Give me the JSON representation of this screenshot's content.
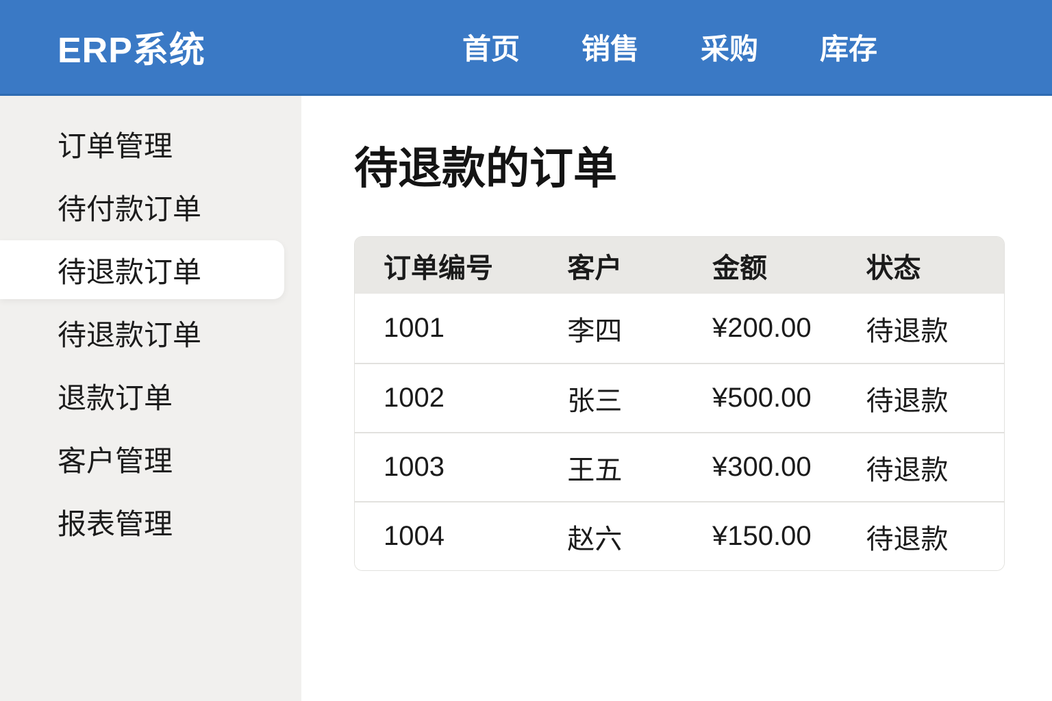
{
  "header": {
    "brand": "ERP系统",
    "nav": [
      {
        "label": "首页"
      },
      {
        "label": "销售"
      },
      {
        "label": "采购"
      },
      {
        "label": "库存"
      }
    ]
  },
  "sidebar": {
    "items": [
      {
        "label": "订单管理",
        "active": false
      },
      {
        "label": "待付款订单",
        "active": false
      },
      {
        "label": "待退款订单",
        "active": true
      },
      {
        "label": "待退款订单",
        "active": false
      },
      {
        "label": "退款订单",
        "active": false
      },
      {
        "label": "客户管理",
        "active": false
      },
      {
        "label": "报表管理",
        "active": false
      }
    ]
  },
  "main": {
    "title": "待退款的订单",
    "table": {
      "columns": [
        "订单编号",
        "客户",
        "金额",
        "状态"
      ],
      "rows": [
        [
          "1001",
          "李四",
          "¥200.00",
          "待退款"
        ],
        [
          "1002",
          "张三",
          "¥500.00",
          "待退款"
        ],
        [
          "1003",
          "王五",
          "¥300.00",
          "待退款"
        ],
        [
          "1004",
          "赵六",
          "¥150.00",
          "待退款"
        ]
      ]
    }
  },
  "colors": {
    "header_bg": "#3a79c5",
    "header_border": "#2e6bb1",
    "sidebar_bg": "#f1f0ee",
    "table_header_bg": "#e9e8e5",
    "row_border": "#e2e1de",
    "text": "#1b1b1b"
  }
}
